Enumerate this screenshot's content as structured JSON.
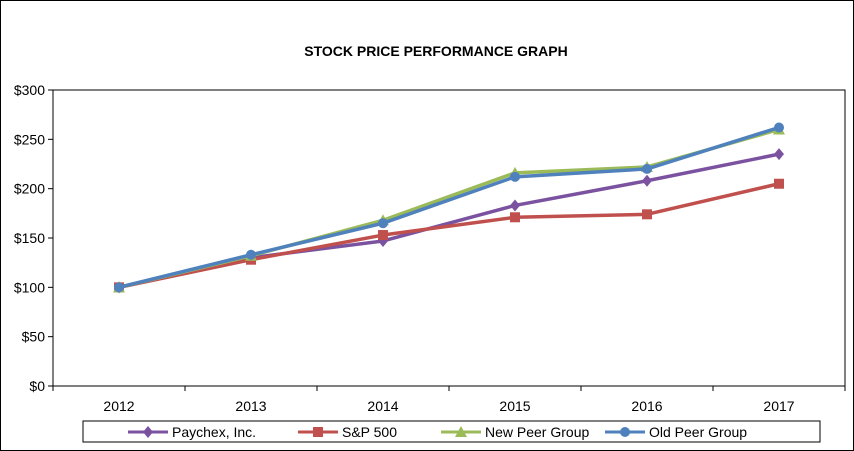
{
  "chart_data": {
    "type": "line",
    "title": "STOCK PRICE PERFORMANCE  GRAPH",
    "xlabel": "",
    "ylabel": "",
    "categories": [
      "2012",
      "2013",
      "2014",
      "2015",
      "2016",
      "2017"
    ],
    "ylim": [
      0,
      300
    ],
    "yticks": [
      0,
      50,
      100,
      150,
      200,
      250,
      300
    ],
    "ytick_labels": [
      "$0",
      "$50",
      "$100",
      "$150",
      "$200",
      "$250",
      "$300"
    ],
    "grid": false,
    "legend_position": "bottom",
    "series": [
      {
        "name": "Paychex, Inc.",
        "color": "#7B52A0",
        "marker": "diamond",
        "values": [
          100,
          130,
          147,
          183,
          208,
          235
        ]
      },
      {
        "name": "S&P 500",
        "color": "#C0504D",
        "marker": "square",
        "values": [
          100,
          128,
          153,
          171,
          174,
          205
        ]
      },
      {
        "name": "New Peer Group",
        "color": "#9BBB59",
        "marker": "triangle",
        "values": [
          100,
          132,
          168,
          216,
          222,
          260
        ]
      },
      {
        "name": "Old Peer Group",
        "color": "#4F81BD",
        "marker": "circle",
        "values": [
          100,
          133,
          165,
          212,
          220,
          262
        ]
      }
    ]
  }
}
